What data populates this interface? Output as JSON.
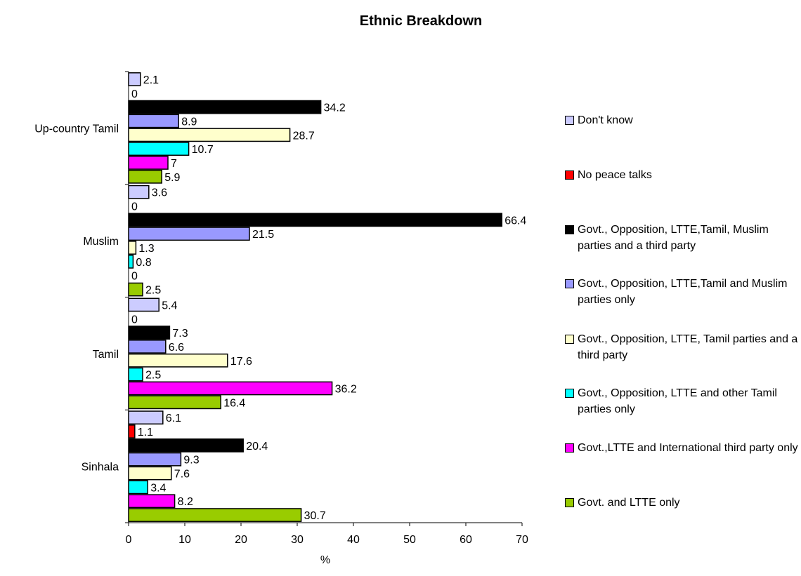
{
  "chart_data": {
    "type": "bar",
    "orientation": "horizontal",
    "title": "Ethnic Breakdown",
    "xlabel": "%",
    "ylabel": "",
    "xlim": [
      0,
      70
    ],
    "xticks": [
      0,
      10,
      20,
      30,
      40,
      50,
      60,
      70
    ],
    "grid": false,
    "legend_position": "right",
    "categories": [
      "Sinhala",
      "Tamil",
      "Muslim",
      "Up-country Tamil"
    ],
    "series": [
      {
        "name": "Govt. and LTTE only",
        "color": "#99cc00",
        "values": [
          30.7,
          16.4,
          2.5,
          5.9
        ]
      },
      {
        "name": "Govt.,LTTE and International third party only",
        "color": "#ff00ff",
        "values": [
          8.2,
          36.2,
          0,
          7
        ]
      },
      {
        "name": "Govt., Opposition, LTTE and other Tamil parties only",
        "color": "#00ffff",
        "values": [
          3.4,
          2.5,
          0.8,
          10.7
        ]
      },
      {
        "name": "Govt., Opposition, LTTE, Tamil parties and a third party",
        "color": "#ffffcc",
        "values": [
          7.6,
          17.6,
          1.3,
          28.7
        ]
      },
      {
        "name": "Govt., Opposition, LTTE,Tamil and Muslim parties only",
        "color": "#9999ff",
        "values": [
          9.3,
          6.6,
          21.5,
          8.9
        ]
      },
      {
        "name": "Govt., Opposition, LTTE,Tamil, Muslim parties and a third party",
        "color": "#000000",
        "values": [
          20.4,
          7.3,
          66.4,
          34.2
        ]
      },
      {
        "name": "No peace talks",
        "color": "#ff0000",
        "values": [
          1.1,
          0,
          0,
          0
        ]
      },
      {
        "name": "Don't know",
        "color": "#ccccff",
        "values": [
          6.1,
          5.4,
          3.6,
          2.1
        ]
      }
    ]
  }
}
